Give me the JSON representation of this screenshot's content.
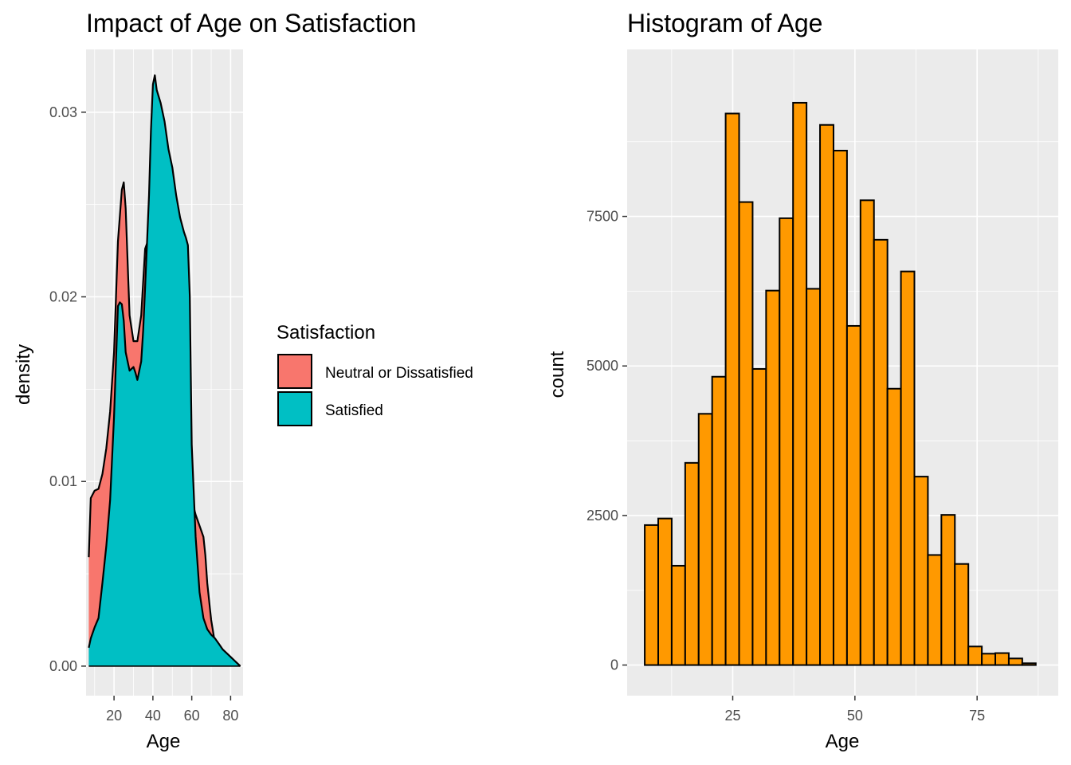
{
  "chart_data": [
    {
      "type": "area",
      "title": "Impact of Age on Satisfaction",
      "xlabel": "Age",
      "ylabel": "density",
      "xlim": [
        5.6,
        86.4
      ],
      "ylim": [
        -0.0016,
        0.0334
      ],
      "xticks": [
        20,
        40,
        60,
        80
      ],
      "yticks": [
        0.0,
        0.01,
        0.02,
        0.03
      ],
      "ytick_labels": [
        "0.00",
        "0.01",
        "0.02",
        "0.03"
      ],
      "grid": true,
      "legend": {
        "title": "Satisfaction",
        "placement": "right",
        "entries": [
          {
            "label": "Neutral or Dissatisfied",
            "color": "#F8766D"
          },
          {
            "label": "Satisfied",
            "color": "#00BFC4"
          }
        ]
      },
      "series": [
        {
          "name": "Neutral or Dissatisfied",
          "color": "#F8766D",
          "x": [
            7,
            8,
            10,
            12,
            14,
            16,
            18,
            20,
            22,
            24,
            25,
            26,
            28,
            30,
            32,
            34,
            36,
            37,
            38,
            40,
            42,
            44,
            46,
            48,
            50,
            52,
            54,
            56,
            58,
            59,
            60,
            62,
            64,
            66,
            67,
            68,
            70,
            72,
            74,
            76,
            78,
            80,
            82,
            84,
            85
          ],
          "y": [
            0.0059,
            0.0091,
            0.0095,
            0.0096,
            0.0104,
            0.0118,
            0.0138,
            0.017,
            0.023,
            0.0258,
            0.0262,
            0.0248,
            0.019,
            0.0176,
            0.0176,
            0.019,
            0.0226,
            0.0229,
            0.02,
            0.02,
            0.021,
            0.02,
            0.0185,
            0.018,
            0.017,
            0.016,
            0.014,
            0.0115,
            0.01,
            0.0095,
            0.009,
            0.0082,
            0.0076,
            0.007,
            0.006,
            0.0045,
            0.0025,
            0.0012,
            0.0007,
            0.0006,
            0.0004,
            0.0002,
            0.0001,
            5e-05,
            0.0
          ]
        },
        {
          "name": "Satisfied",
          "color": "#00BFC4",
          "x": [
            7,
            8,
            10,
            12,
            14,
            16,
            18,
            20,
            22,
            23,
            24,
            25,
            26,
            28,
            30,
            31,
            32,
            34,
            35,
            36,
            38,
            39,
            40,
            41,
            42,
            44,
            46,
            48,
            50,
            52,
            54,
            56,
            57,
            58,
            59,
            60,
            62,
            64,
            66,
            68,
            70,
            72,
            74,
            76,
            78,
            80,
            82,
            84,
            85
          ],
          "y": [
            0.001,
            0.0015,
            0.0021,
            0.0026,
            0.0045,
            0.0065,
            0.009,
            0.0135,
            0.0195,
            0.0197,
            0.0196,
            0.0187,
            0.017,
            0.016,
            0.0162,
            0.0159,
            0.0155,
            0.0165,
            0.0182,
            0.0205,
            0.0255,
            0.029,
            0.0315,
            0.032,
            0.0312,
            0.0305,
            0.0295,
            0.028,
            0.027,
            0.0255,
            0.0243,
            0.0235,
            0.0232,
            0.0228,
            0.02,
            0.012,
            0.007,
            0.004,
            0.0026,
            0.002,
            0.0017,
            0.0015,
            0.0012,
            0.0009,
            0.0007,
            0.0005,
            0.0003,
            0.0001,
            0.0
          ]
        }
      ]
    },
    {
      "type": "bar",
      "title": "Histogram of Age",
      "xlabel": "Age",
      "ylabel": "count",
      "xlim": [
        3.4,
        91.6
      ],
      "ylim": [
        -512,
        10292
      ],
      "xticks": [
        25,
        50,
        75
      ],
      "yticks": [
        0,
        2500,
        5000,
        7500
      ],
      "grid": true,
      "bar_color": "#FF9900",
      "bin_width": 2.759,
      "bins": [
        {
          "x0": 7.0,
          "count": 2340
        },
        {
          "x0": 9.759,
          "count": 2450
        },
        {
          "x0": 12.517,
          "count": 1660
        },
        {
          "x0": 15.276,
          "count": 3380
        },
        {
          "x0": 18.034,
          "count": 4200
        },
        {
          "x0": 20.793,
          "count": 4820
        },
        {
          "x0": 23.552,
          "count": 9220
        },
        {
          "x0": 26.31,
          "count": 7740
        },
        {
          "x0": 29.069,
          "count": 4950
        },
        {
          "x0": 31.828,
          "count": 6260
        },
        {
          "x0": 34.586,
          "count": 7470
        },
        {
          "x0": 37.345,
          "count": 9400
        },
        {
          "x0": 40.103,
          "count": 6290
        },
        {
          "x0": 42.862,
          "count": 9030
        },
        {
          "x0": 45.621,
          "count": 8600
        },
        {
          "x0": 48.379,
          "count": 5670
        },
        {
          "x0": 51.138,
          "count": 7770
        },
        {
          "x0": 53.897,
          "count": 7110
        },
        {
          "x0": 56.655,
          "count": 4620
        },
        {
          "x0": 59.414,
          "count": 6580
        },
        {
          "x0": 62.172,
          "count": 3150
        },
        {
          "x0": 64.931,
          "count": 1840
        },
        {
          "x0": 67.69,
          "count": 2510
        },
        {
          "x0": 70.448,
          "count": 1690
        },
        {
          "x0": 73.207,
          "count": 310
        },
        {
          "x0": 75.966,
          "count": 190
        },
        {
          "x0": 78.724,
          "count": 200
        },
        {
          "x0": 81.483,
          "count": 110
        },
        {
          "x0": 84.241,
          "count": 30
        }
      ]
    }
  ]
}
